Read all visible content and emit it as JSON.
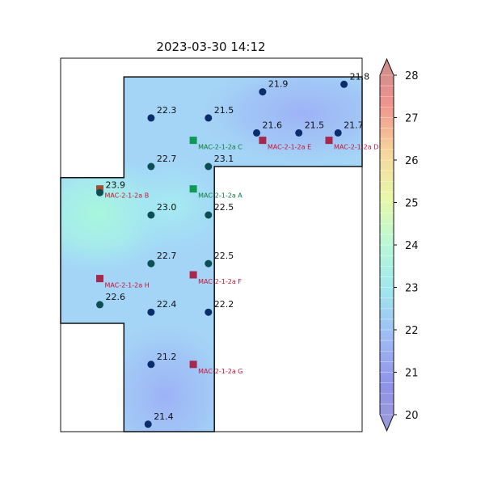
{
  "colors": {
    "sensor_marker": "#0b2d6b",
    "sensor_marker_alt": "#0b4f55",
    "device_red": "#a6284c",
    "device_green": "#0d9a55",
    "device_brown": "#a34d38",
    "label_red": "#cc1133",
    "label_green": "#0b7d3a",
    "outline": "#111111"
  },
  "chart_data": {
    "type": "heatmap",
    "title": "2023-03-30  14:12",
    "xlabel": "",
    "ylabel": "",
    "plot_extent": {
      "x": [
        0,
        100
      ],
      "y": [
        0,
        100
      ]
    },
    "grid": false,
    "colorbar": {
      "min": 20,
      "max": 28,
      "ticks": [
        "20",
        "21",
        "22",
        "23",
        "24",
        "25",
        "26",
        "27",
        "28"
      ],
      "levels_step": 0.25,
      "extend": "both",
      "placement": "right"
    },
    "floor_outline": [
      [
        21,
        0
      ],
      [
        21,
        98
      ],
      [
        52,
        98
      ],
      [
        52,
        66
      ],
      [
        100,
        66
      ],
      [
        100,
        96
      ],
      [
        0,
        96
      ]
    ],
    "sensors": [
      {
        "value": "21.9",
        "x": 67,
        "y": 91
      },
      {
        "value": "21.8",
        "x": 94,
        "y": 93
      },
      {
        "value": "22.3",
        "x": 30,
        "y": 84
      },
      {
        "value": "21.5",
        "x": 49,
        "y": 84
      },
      {
        "value": "21.6",
        "x": 65,
        "y": 80
      },
      {
        "value": "21.5",
        "x": 79,
        "y": 80
      },
      {
        "value": "21.7",
        "x": 92,
        "y": 80
      },
      {
        "value": "22.7",
        "x": 30,
        "y": 71
      },
      {
        "value": "23.1",
        "x": 49,
        "y": 71
      },
      {
        "value": "23.9",
        "x": 13,
        "y": 64
      },
      {
        "value": "23.0",
        "x": 30,
        "y": 58
      },
      {
        "value": "22.5",
        "x": 49,
        "y": 58
      },
      {
        "value": "22.7",
        "x": 30,
        "y": 45
      },
      {
        "value": "22.5",
        "x": 49,
        "y": 45
      },
      {
        "value": "22.6",
        "x": 13,
        "y": 34
      },
      {
        "value": "22.4",
        "x": 30,
        "y": 32
      },
      {
        "value": "22.2",
        "x": 49,
        "y": 32
      },
      {
        "value": "21.2",
        "x": 30,
        "y": 18
      },
      {
        "value": "21.4",
        "x": 29,
        "y": 2
      }
    ],
    "devices": [
      {
        "label": "MAC-2-1-2a C",
        "x": 44,
        "y": 78,
        "kind": "green"
      },
      {
        "label": "MAC-2-1-2a E",
        "x": 67,
        "y": 78,
        "kind": "red"
      },
      {
        "label": "MAC-2-1-2a D",
        "x": 89,
        "y": 78,
        "kind": "red"
      },
      {
        "label": "MAC-2-1-2a B",
        "x": 13,
        "y": 65,
        "kind": "brown"
      },
      {
        "label": "MAC-2-1-2a A",
        "x": 44,
        "y": 65,
        "kind": "green"
      },
      {
        "label": "MAC-2-1-2a F",
        "x": 44,
        "y": 42,
        "kind": "red"
      },
      {
        "label": "MAC-2-1-2a H",
        "x": 13,
        "y": 41,
        "kind": "red"
      },
      {
        "label": "MAC-2-1-2a G",
        "x": 44,
        "y": 18,
        "kind": "red"
      }
    ]
  }
}
